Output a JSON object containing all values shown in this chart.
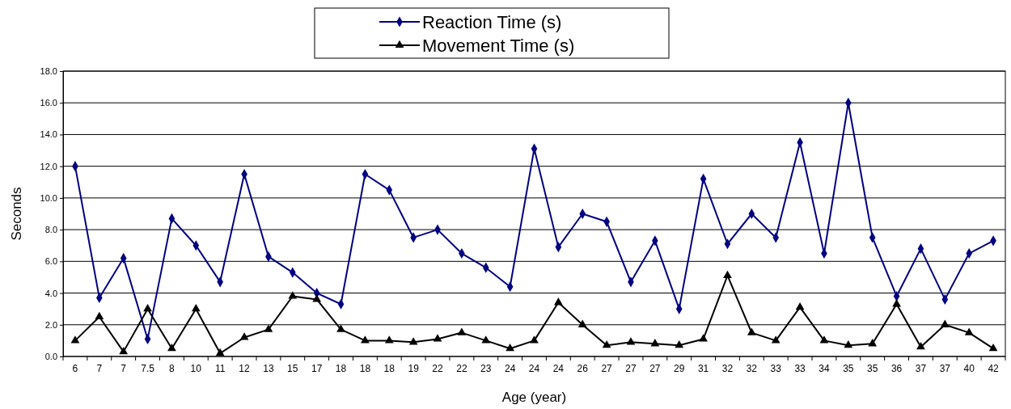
{
  "chart_data": {
    "type": "line",
    "xlabel": "Age (year)",
    "ylabel": "Seconds",
    "categories": [
      "6",
      "7",
      "7",
      "7.5",
      "8",
      "10",
      "11",
      "12",
      "13",
      "15",
      "17",
      "18",
      "18",
      "18",
      "19",
      "22",
      "22",
      "23",
      "24",
      "24",
      "24",
      "26",
      "27",
      "27",
      "27",
      "29",
      "31",
      "32",
      "32",
      "33",
      "33",
      "34",
      "35",
      "35",
      "36",
      "37",
      "37",
      "40",
      "42"
    ],
    "series": [
      {
        "name": "Reaction Time (s)",
        "color": "#000080",
        "marker": "diamond",
        "values": [
          12.0,
          3.7,
          6.2,
          1.1,
          8.7,
          7.0,
          4.7,
          11.5,
          6.3,
          5.3,
          4.0,
          3.3,
          11.5,
          10.5,
          7.5,
          8.0,
          6.5,
          5.6,
          4.4,
          13.1,
          6.9,
          9.0,
          8.5,
          4.7,
          7.3,
          3.0,
          11.2,
          7.1,
          9.0,
          7.5,
          13.5,
          6.5,
          16.0,
          7.5,
          3.8,
          6.8,
          3.6,
          6.5,
          7.3
        ]
      },
      {
        "name": "Movement Time (s)",
        "color": "#000000",
        "marker": "triangle",
        "values": [
          1.0,
          2.5,
          0.3,
          3.0,
          0.5,
          3.0,
          0.2,
          1.2,
          1.7,
          3.8,
          3.6,
          1.7,
          1.0,
          1.0,
          0.9,
          1.1,
          1.5,
          1.0,
          0.5,
          1.0,
          3.4,
          2.0,
          0.7,
          0.9,
          0.8,
          0.7,
          1.1,
          5.1,
          1.5,
          1.0,
          3.1,
          1.0,
          0.7,
          0.8,
          3.3,
          0.6,
          2.0,
          1.5,
          0.5
        ]
      }
    ],
    "ylim": [
      0,
      18
    ],
    "yticks": [
      {
        "value": 0,
        "label": "0.0"
      },
      {
        "value": 2,
        "label": "2.0"
      },
      {
        "value": 4,
        "label": "4.0"
      },
      {
        "value": 6,
        "label": "6.0"
      },
      {
        "value": 8,
        "label": "8.0"
      },
      {
        "value": 10,
        "label": "10.0"
      },
      {
        "value": 12,
        "label": "12.0"
      },
      {
        "value": 14,
        "label": "14.0"
      },
      {
        "value": 16,
        "label": "16.0"
      },
      {
        "value": 18,
        "label": "18.0"
      }
    ],
    "grid": "y",
    "legend": "top",
    "line_style": "solid"
  }
}
